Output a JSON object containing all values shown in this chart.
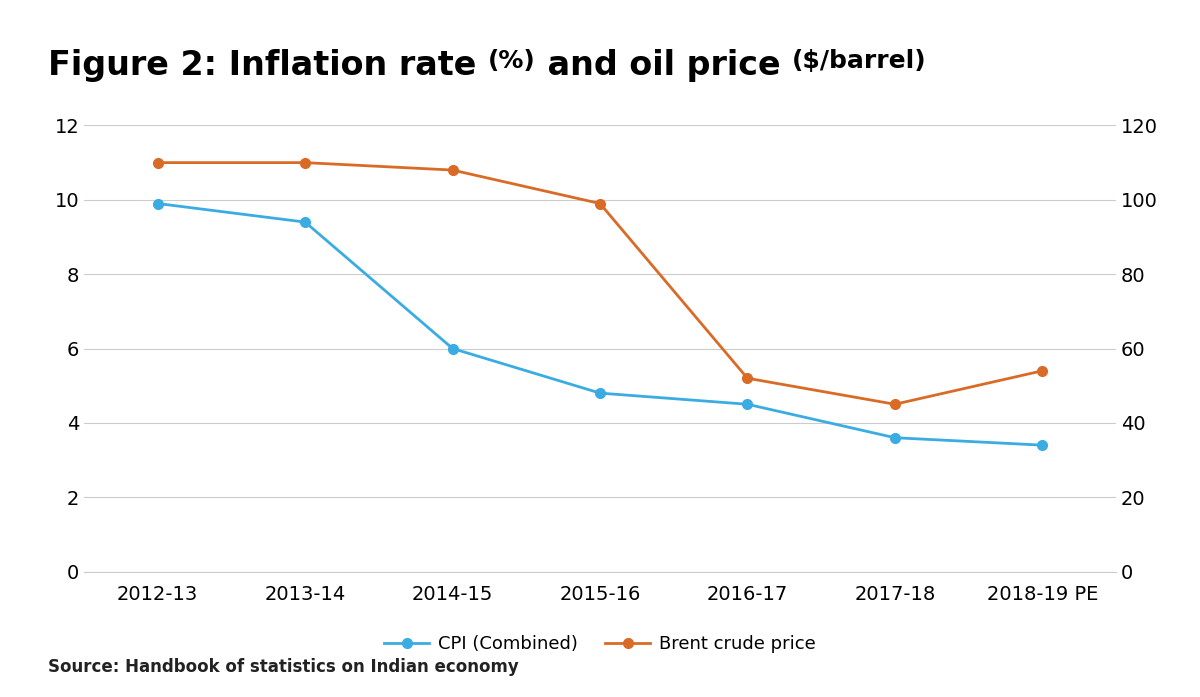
{
  "categories": [
    "2012-13",
    "2013-14",
    "2014-15",
    "2015-16",
    "2016-17",
    "2017-18",
    "2018-19 PE"
  ],
  "cpi": [
    9.9,
    9.4,
    6.0,
    4.8,
    4.5,
    3.6,
    3.4
  ],
  "brent": [
    110,
    110,
    108,
    99,
    52,
    45,
    54
  ],
  "cpi_color": "#3AACE2",
  "brent_color": "#D96B27",
  "left_ylim": [
    0,
    12
  ],
  "right_ylim": [
    0,
    120
  ],
  "left_yticks": [
    0,
    2,
    4,
    6,
    8,
    10,
    12
  ],
  "right_yticks": [
    0,
    20,
    40,
    60,
    80,
    100,
    120
  ],
  "legend_cpi": "CPI (Combined)",
  "legend_brent": "Brent crude price",
  "source_text": "Source: Handbook of statistics on Indian economy",
  "background_color": "#FFFFFF",
  "grid_color": "#CCCCCC",
  "marker": "o",
  "linewidth": 2.0,
  "markersize": 7,
  "title_bold_part": "Figure 2: Inflation rate ",
  "title_normal_part1": "(%)",
  "title_bold_part2": " and oil price ",
  "title_normal_part2": "($/barrel)",
  "title_fontsize_large": 24,
  "title_fontsize_small": 18,
  "tick_fontsize": 14,
  "legend_fontsize": 13,
  "source_fontsize": 12
}
